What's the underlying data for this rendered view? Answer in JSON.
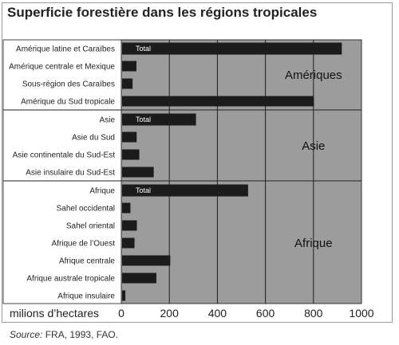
{
  "chart_data": {
    "type": "bar",
    "orientation": "horizontal",
    "title": "Superficie forestière dans les régions tropicales",
    "xlabel": "milions d’hectares",
    "xlim": [
      0,
      1000
    ],
    "xticks": [
      "0",
      "200",
      "400",
      "600",
      "800",
      "1000"
    ],
    "grid": true,
    "total_label": "Total",
    "bar_color": "#1c1c1c",
    "panel_color": "#9c9c9c",
    "groups": [
      {
        "region": "Amériques",
        "categories": [
          {
            "label": "Amérique latine et Caraïbes",
            "value": 918,
            "total": true
          },
          {
            "label": "Amérique centrale et Mexique",
            "value": 63
          },
          {
            "label": "Sous-région des Caraïbes",
            "value": 47
          },
          {
            "label": "Amérique du Sud tropicale",
            "value": 802
          }
        ]
      },
      {
        "region": "Asie",
        "categories": [
          {
            "label": "Asie",
            "value": 311,
            "total": true
          },
          {
            "label": "Asie du Sud",
            "value": 64
          },
          {
            "label": "Asie continentale du Sud-Est",
            "value": 75
          },
          {
            "label": "Asie insulaire du Sud-Est",
            "value": 135
          }
        ]
      },
      {
        "region": "Afrique",
        "categories": [
          {
            "label": "Afrique",
            "value": 528,
            "total": true
          },
          {
            "label": "Sahel occidental",
            "value": 38
          },
          {
            "label": "Sahel oriental",
            "value": 65
          },
          {
            "label": "Afrique de l’Ouest",
            "value": 55
          },
          {
            "label": "Afrique centrale",
            "value": 204
          },
          {
            "label": "Afrique australe tropicale",
            "value": 146
          },
          {
            "label": "Afrique insulaire",
            "value": 17
          }
        ]
      }
    ]
  },
  "source": {
    "label": "Source:",
    "text": "FRA, 1993, FAO."
  }
}
